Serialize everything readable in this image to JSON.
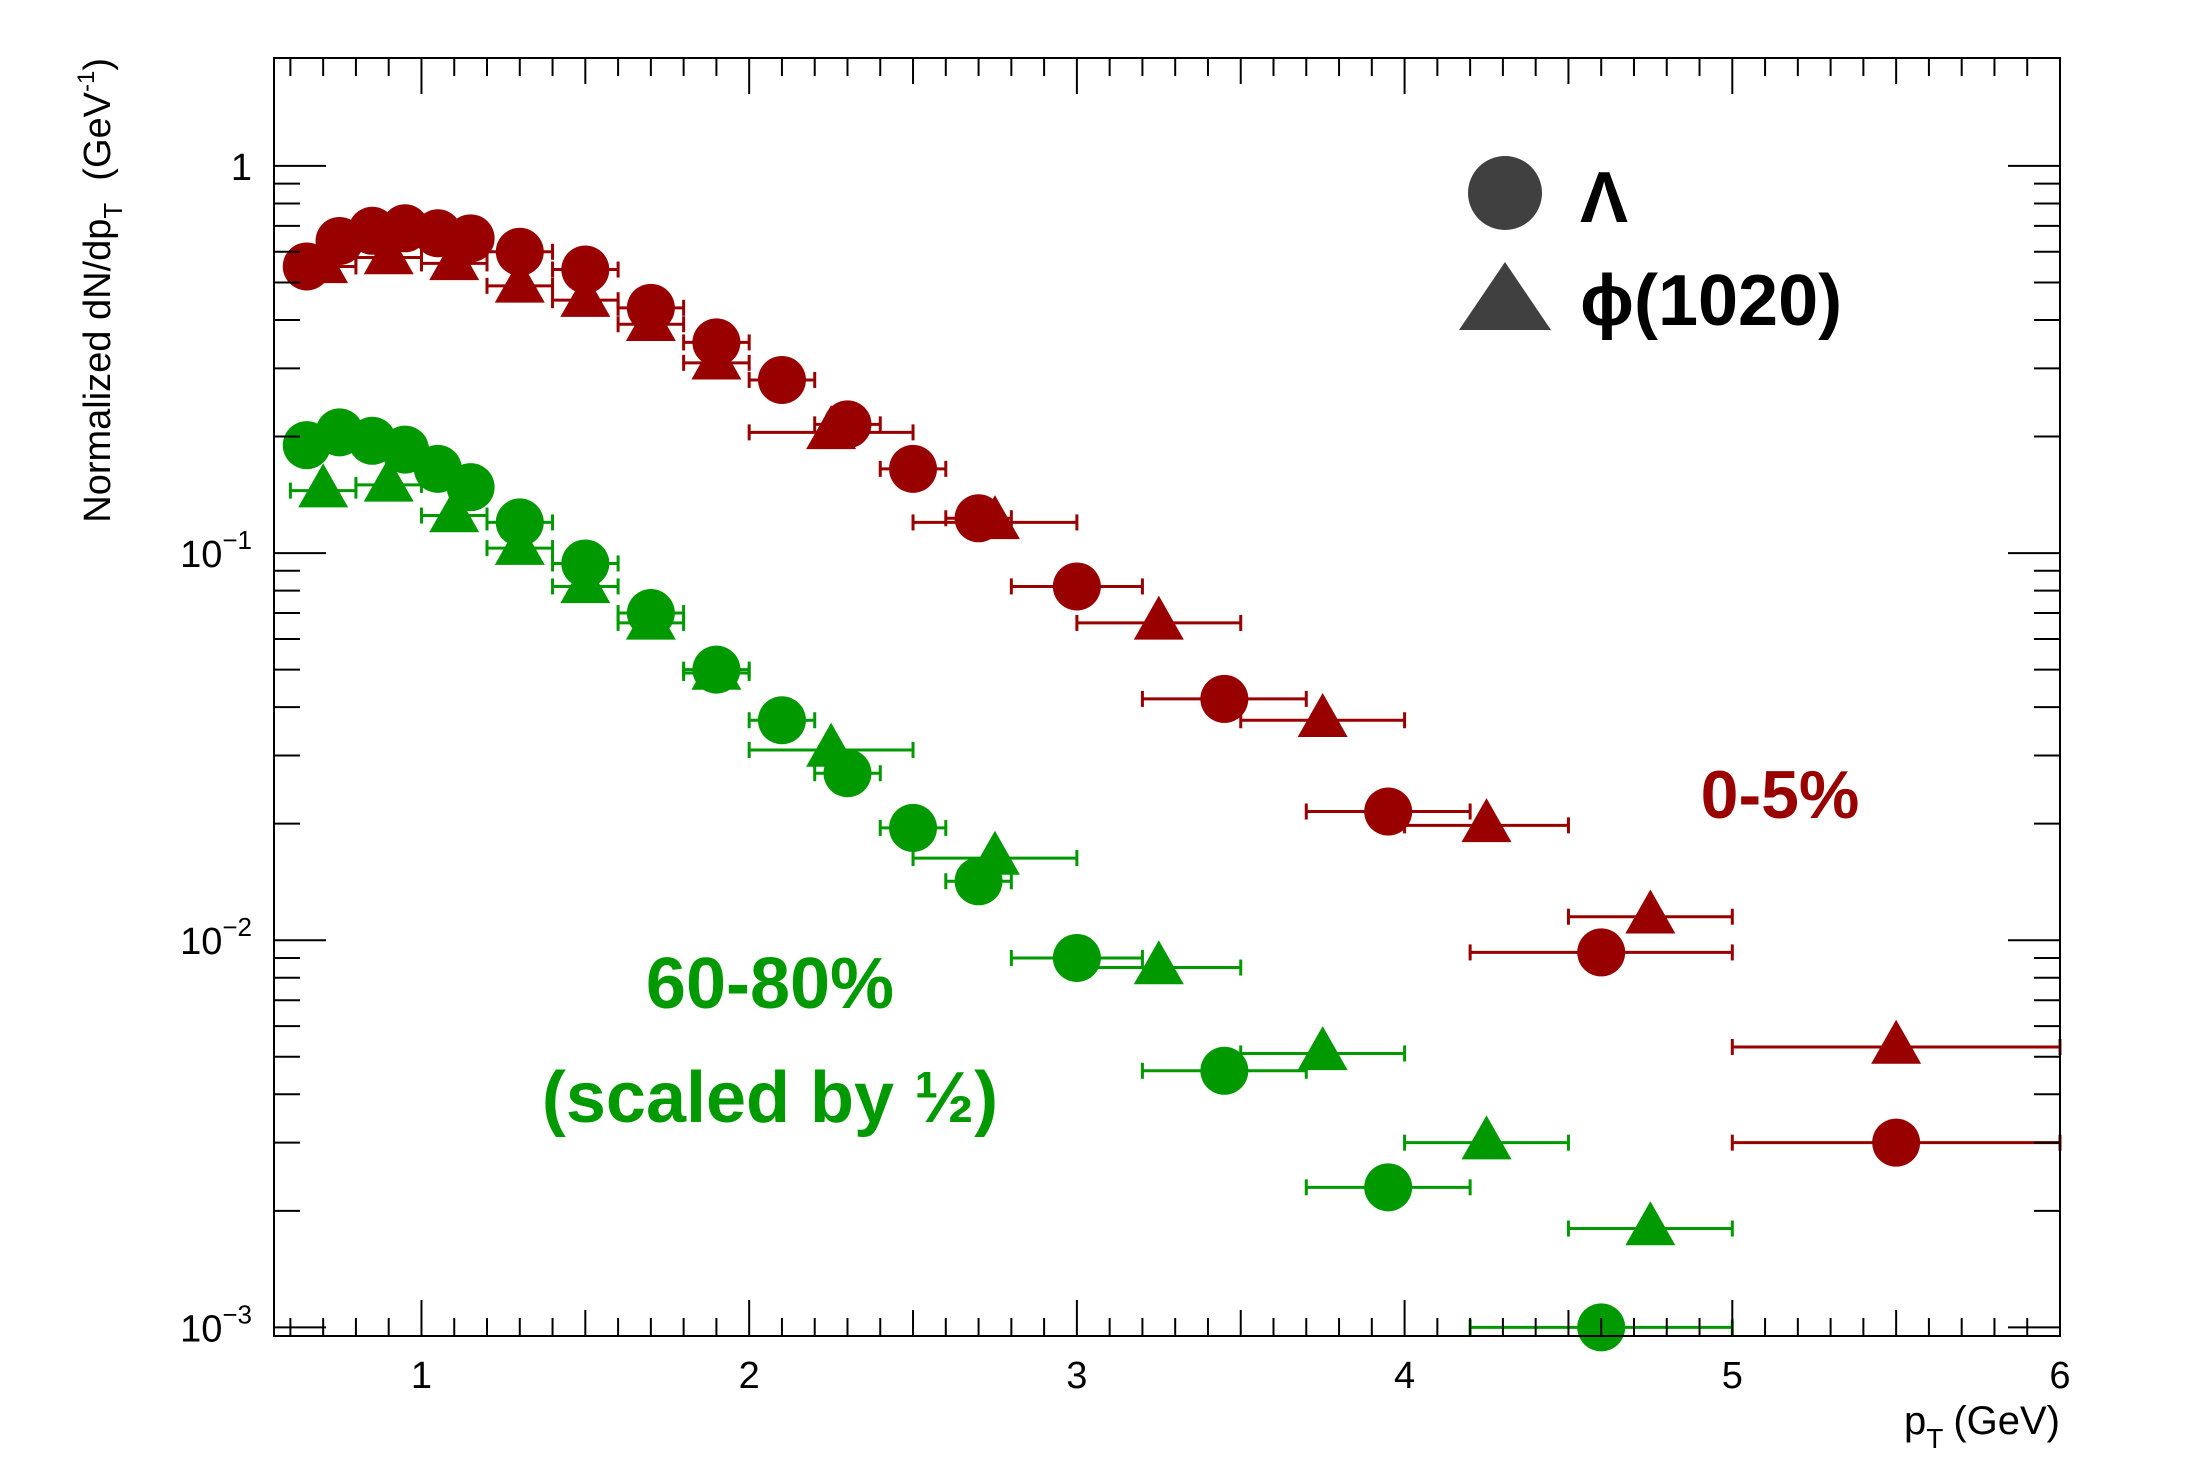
{
  "chart_data": {
    "type": "scatter",
    "title": "",
    "xlabel": "p",
    "xlabel_sub": "T",
    "xlabel_unit": "(GeV)",
    "ylabel": "Normalized dN/dp",
    "ylabel_sub": "T",
    "ylabel_unit": "(GeV",
    "ylabel_unit_sup": "-1",
    "ylabel_unit_close": ")",
    "xlim": [
      0.55,
      6.0
    ],
    "ylim": [
      0.00095,
      1.9
    ],
    "yscale": "log",
    "grid": false,
    "x_ticks": [
      "1",
      "2",
      "3",
      "4",
      "5",
      "6"
    ],
    "y_ticks": [
      {
        "value": 1,
        "base": "1",
        "exp": ""
      },
      {
        "value": 0.1,
        "base": "10",
        "exp": "−1"
      },
      {
        "value": 0.01,
        "base": "10",
        "exp": "−2"
      },
      {
        "value": 0.001,
        "base": "10",
        "exp": "−3"
      }
    ],
    "legend": {
      "position": "top-right",
      "entries": [
        {
          "marker": "circle",
          "label": "Λ"
        },
        {
          "marker": "triangle",
          "label": "ϕ(1020)"
        }
      ]
    },
    "annotations": [
      {
        "text": "0-5%",
        "color": "#990000"
      },
      {
        "text": "60-80%",
        "color": "#009900"
      },
      {
        "text": "(scaled by ½)",
        "color": "#009900"
      }
    ],
    "colors": {
      "central": "#990000",
      "peripheral": "#009900",
      "legend_marker": "#404040"
    },
    "series": [
      {
        "marker": "circle",
        "color": "#990000",
        "points": [
          {
            "x": 0.65,
            "y": 0.55,
            "xerr": 0.05
          },
          {
            "x": 0.75,
            "y": 0.64,
            "xerr": 0.05
          },
          {
            "x": 0.85,
            "y": 0.68,
            "xerr": 0.05
          },
          {
            "x": 0.95,
            "y": 0.69,
            "xerr": 0.05
          },
          {
            "x": 1.05,
            "y": 0.67,
            "xerr": 0.05
          },
          {
            "x": 1.15,
            "y": 0.65,
            "xerr": 0.05
          },
          {
            "x": 1.3,
            "y": 0.6,
            "xerr": 0.1
          },
          {
            "x": 1.5,
            "y": 0.54,
            "xerr": 0.1
          },
          {
            "x": 1.7,
            "y": 0.43,
            "xerr": 0.1
          },
          {
            "x": 1.9,
            "y": 0.35,
            "xerr": 0.1
          },
          {
            "x": 2.1,
            "y": 0.28,
            "xerr": 0.1
          },
          {
            "x": 2.3,
            "y": 0.215,
            "xerr": 0.1
          },
          {
            "x": 2.5,
            "y": 0.165,
            "xerr": 0.1
          },
          {
            "x": 2.7,
            "y": 0.123,
            "xerr": 0.1
          },
          {
            "x": 3.0,
            "y": 0.082,
            "xerr": 0.2
          },
          {
            "x": 3.45,
            "y": 0.042,
            "xerr": 0.25
          },
          {
            "x": 3.95,
            "y": 0.0215,
            "xerr": 0.25
          },
          {
            "x": 4.6,
            "y": 0.0093,
            "xerr": 0.4
          },
          {
            "x": 5.5,
            "y": 0.003,
            "xerr": 0.5
          }
        ]
      },
      {
        "marker": "triangle",
        "color": "#990000",
        "points": [
          {
            "x": 0.7,
            "y": 0.55,
            "xerr": 0.1
          },
          {
            "x": 0.9,
            "y": 0.58,
            "xerr": 0.1
          },
          {
            "x": 1.1,
            "y": 0.56,
            "xerr": 0.1
          },
          {
            "x": 1.3,
            "y": 0.49,
            "xerr": 0.1
          },
          {
            "x": 1.5,
            "y": 0.45,
            "xerr": 0.1
          },
          {
            "x": 1.7,
            "y": 0.39,
            "xerr": 0.1
          },
          {
            "x": 1.9,
            "y": 0.31,
            "xerr": 0.1
          },
          {
            "x": 2.25,
            "y": 0.205,
            "xerr": 0.25
          },
          {
            "x": 2.75,
            "y": 0.12,
            "xerr": 0.25
          },
          {
            "x": 3.25,
            "y": 0.066,
            "xerr": 0.25
          },
          {
            "x": 3.75,
            "y": 0.037,
            "xerr": 0.25
          },
          {
            "x": 4.25,
            "y": 0.0198,
            "xerr": 0.25
          },
          {
            "x": 4.75,
            "y": 0.0115,
            "xerr": 0.25
          },
          {
            "x": 5.5,
            "y": 0.0053,
            "xerr": 0.5
          }
        ]
      },
      {
        "marker": "circle",
        "color": "#009900",
        "points": [
          {
            "x": 0.65,
            "y": 0.19,
            "xerr": 0.05
          },
          {
            "x": 0.75,
            "y": 0.205,
            "xerr": 0.05
          },
          {
            "x": 0.85,
            "y": 0.195,
            "xerr": 0.05
          },
          {
            "x": 0.95,
            "y": 0.185,
            "xerr": 0.05
          },
          {
            "x": 1.05,
            "y": 0.165,
            "xerr": 0.05
          },
          {
            "x": 1.15,
            "y": 0.148,
            "xerr": 0.05
          },
          {
            "x": 1.3,
            "y": 0.12,
            "xerr": 0.1
          },
          {
            "x": 1.5,
            "y": 0.094,
            "xerr": 0.1
          },
          {
            "x": 1.7,
            "y": 0.07,
            "xerr": 0.1
          },
          {
            "x": 1.9,
            "y": 0.05,
            "xerr": 0.1
          },
          {
            "x": 2.1,
            "y": 0.037,
            "xerr": 0.1
          },
          {
            "x": 2.3,
            "y": 0.027,
            "xerr": 0.1
          },
          {
            "x": 2.5,
            "y": 0.0195,
            "xerr": 0.1
          },
          {
            "x": 2.7,
            "y": 0.0142,
            "xerr": 0.1
          },
          {
            "x": 3.0,
            "y": 0.009,
            "xerr": 0.2
          },
          {
            "x": 3.45,
            "y": 0.0046,
            "xerr": 0.25
          },
          {
            "x": 3.95,
            "y": 0.0023,
            "xerr": 0.25
          },
          {
            "x": 4.6,
            "y": 0.001,
            "xerr": 0.4
          }
        ]
      },
      {
        "marker": "triangle",
        "color": "#009900",
        "points": [
          {
            "x": 0.7,
            "y": 0.145,
            "xerr": 0.1
          },
          {
            "x": 0.9,
            "y": 0.15,
            "xerr": 0.1
          },
          {
            "x": 1.1,
            "y": 0.125,
            "xerr": 0.1
          },
          {
            "x": 1.3,
            "y": 0.103,
            "xerr": 0.1
          },
          {
            "x": 1.5,
            "y": 0.082,
            "xerr": 0.1
          },
          {
            "x": 1.7,
            "y": 0.066,
            "xerr": 0.1
          },
          {
            "x": 1.9,
            "y": 0.049,
            "xerr": 0.1
          },
          {
            "x": 2.25,
            "y": 0.031,
            "xerr": 0.25
          },
          {
            "x": 2.75,
            "y": 0.0163,
            "xerr": 0.25
          },
          {
            "x": 3.25,
            "y": 0.0085,
            "xerr": 0.25
          },
          {
            "x": 3.75,
            "y": 0.0051,
            "xerr": 0.25
          },
          {
            "x": 4.25,
            "y": 0.003,
            "xerr": 0.25
          },
          {
            "x": 4.75,
            "y": 0.0018,
            "xerr": 0.25
          }
        ]
      }
    ]
  }
}
